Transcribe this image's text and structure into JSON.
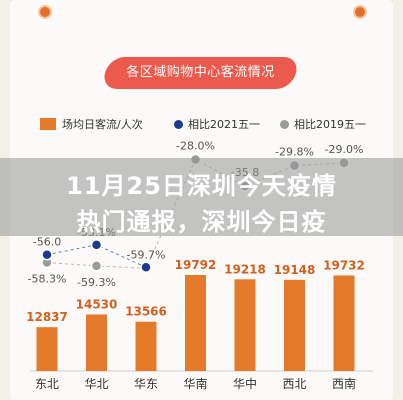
{
  "chart_title": "各区域购物中心客流情况",
  "legend": {
    "bar_label": "场均日客流/人次",
    "dot_2021_label": "相比2021五一",
    "dot_2019_label": "相比2019五一"
  },
  "banner": {
    "line1": "11月25日深圳今天疫情",
    "line2": "热门通报，深圳今日疫"
  },
  "colors": {
    "bar": "#e57a2a",
    "dot_2021": "#1e3a8f",
    "dot_2019": "#9a9a9a",
    "title_pill": "#ec5a4e"
  },
  "chart_data": {
    "type": "bar",
    "title": "各区域购物中心客流情况",
    "categories": [
      "东北",
      "华北",
      "华东",
      "华南",
      "华中",
      "西北",
      "西南"
    ],
    "series": [
      {
        "name": "场均日客流/人次",
        "type": "bar",
        "values": [
          12837,
          14530,
          13566,
          19792,
          19218,
          19148,
          19732
        ],
        "labels": [
          "12837",
          "14530",
          "13566",
          "19792",
          "19218",
          "19148",
          "19732"
        ]
      },
      {
        "name": "相比2021五一",
        "type": "line",
        "values": [
          -56.0,
          -53.1,
          -59.7,
          null,
          null,
          null,
          null
        ],
        "labels": [
          "-56.0",
          "-53.1%",
          "-59.7%",
          "",
          "",
          "",
          ""
        ]
      },
      {
        "name": "相比2019五一",
        "type": "line",
        "values": [
          -58.3,
          -59.3,
          -60.0,
          -28.0,
          -35.8,
          -29.8,
          -29.0
        ],
        "labels": [
          "-58.3%",
          "-59.3%",
          "",
          "-28.0%",
          "-35.8",
          "-29.8%",
          "-29.0%"
        ]
      }
    ]
  }
}
